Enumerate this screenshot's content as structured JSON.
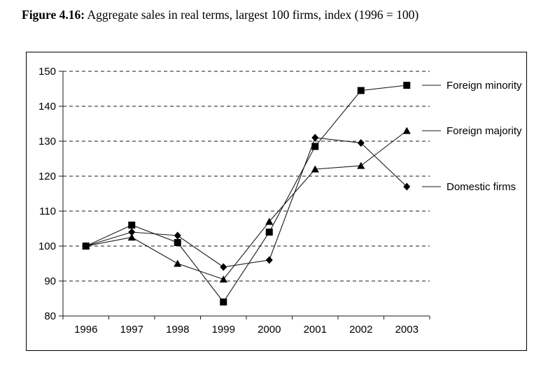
{
  "figure": {
    "title_prefix": "Figure 4.16:",
    "title_text": " Aggregate sales in real terms, largest 100 firms, index (1996 = 100)"
  },
  "chart_data": {
    "type": "line",
    "title": "Aggregate sales in real terms, largest 100 firms, index (1996 = 100)",
    "categories": [
      "1996",
      "1997",
      "1998",
      "1999",
      "2000",
      "2001",
      "2002",
      "2003"
    ],
    "series": [
      {
        "name": "Foreign minority",
        "marker": "square",
        "values": [
          100,
          106,
          101,
          84,
          104,
          128.5,
          144.5,
          146
        ]
      },
      {
        "name": "Foreign majority",
        "marker": "triangle",
        "values": [
          100,
          102.5,
          95,
          90.5,
          107,
          122,
          123,
          133
        ]
      },
      {
        "name": "Domestic firms",
        "marker": "diamond",
        "values": [
          100,
          104,
          103,
          94,
          96,
          131,
          129.5,
          117
        ]
      }
    ],
    "xlabel": "",
    "ylabel": "",
    "ylim": [
      80,
      150
    ],
    "yticks": [
      150,
      140,
      130,
      120,
      110,
      100,
      90,
      80
    ],
    "grid": "horizontal-dashed",
    "legend_position": "right-outside",
    "line_color": "#1a1a1a",
    "marker_color": "#000000",
    "background_color": "#ffffff"
  }
}
